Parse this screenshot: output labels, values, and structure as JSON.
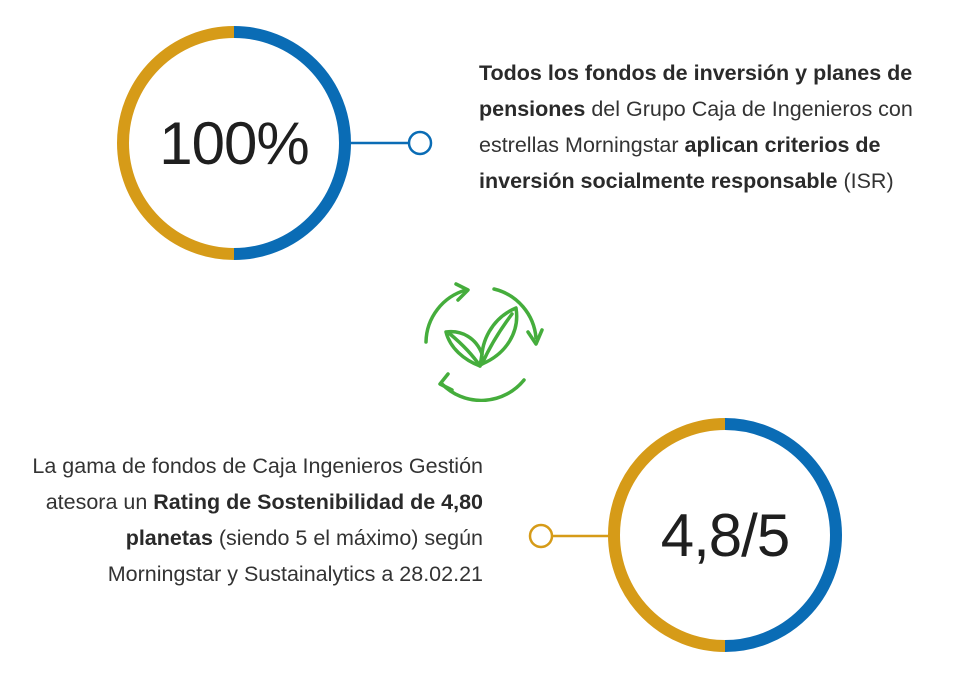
{
  "stat_top": {
    "value": "100%",
    "text": [
      {
        "t": "Todos los fondos de inversión y planes de pensiones",
        "bold": true
      },
      {
        "t": " del Grupo  Caja de Ingenieros con estrellas Morningstar ",
        "bold": false
      },
      {
        "t": "aplican criterios de inversión socialmente responsable",
        "bold": true
      },
      {
        "t": " (ISR)",
        "bold": false
      }
    ]
  },
  "stat_bottom": {
    "value": "4,8/5",
    "text": [
      {
        "t": "La gama de fondos de Caja Ingenieros Gestión atesora un ",
        "bold": false
      },
      {
        "t": "Rating de Sostenibilidad de 4,80 planetas",
        "bold": true
      },
      {
        "t": " (siendo 5 el máximo) según Morningstar y Sustainalytics a 28.02.21",
        "bold": false
      }
    ]
  },
  "colors": {
    "blue": "#0a6cb5",
    "gold": "#d69b18",
    "green": "#45ad3c",
    "text": "#333333"
  },
  "icons": {
    "center": "recycle-leaf-icon"
  }
}
